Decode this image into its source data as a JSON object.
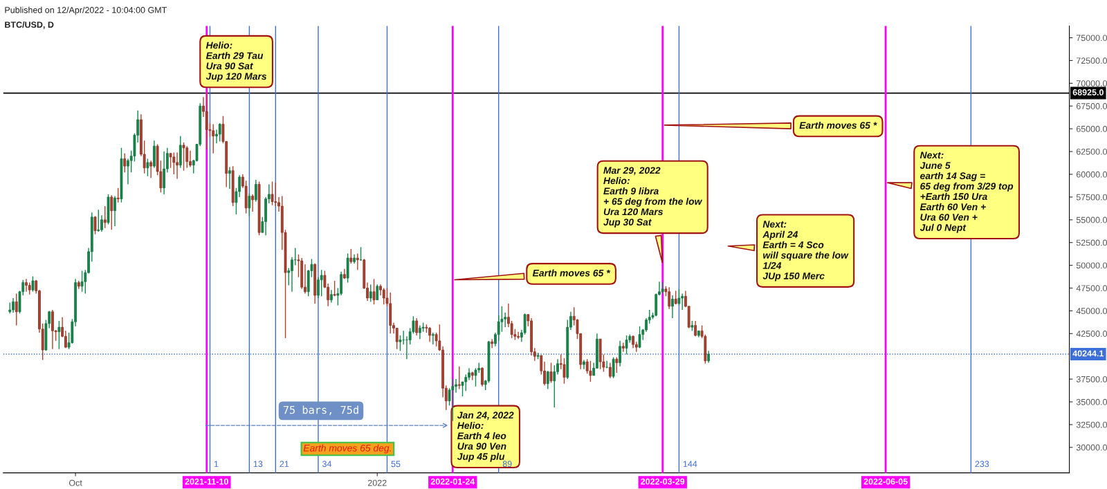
{
  "chart_data": {
    "type": "candlestick",
    "title": "BTC/USD, D",
    "subtitle": "Published on 12/Apr/2022 - 10:04:00 GMT",
    "x": [
      "2021-09-11",
      "2021-09-12",
      "2021-09-13",
      "2021-09-14",
      "2021-09-15",
      "2021-09-16",
      "2021-09-17",
      "2021-09-18",
      "2021-09-19",
      "2021-09-20",
      "2021-09-21",
      "2021-09-22",
      "2021-09-23",
      "2021-09-24",
      "2021-09-25",
      "2021-09-26",
      "2021-09-27",
      "2021-09-28",
      "2021-09-29",
      "2021-09-30",
      "2021-10-01",
      "2021-10-02",
      "2021-10-03",
      "2021-10-04",
      "2021-10-05",
      "2021-10-06",
      "2021-10-07",
      "2021-10-08",
      "2021-10-09",
      "2021-10-10",
      "2021-10-11",
      "2021-10-12",
      "2021-10-13",
      "2021-10-14",
      "2021-10-15",
      "2021-10-16",
      "2021-10-17",
      "2021-10-18",
      "2021-10-19",
      "2021-10-20",
      "2021-10-21",
      "2021-10-22",
      "2021-10-23",
      "2021-10-24",
      "2021-10-25",
      "2021-10-26",
      "2021-10-27",
      "2021-10-28",
      "2021-10-29",
      "2021-10-30",
      "2021-10-31",
      "2021-11-01",
      "2021-11-02",
      "2021-11-03",
      "2021-11-04",
      "2021-11-05",
      "2021-11-06",
      "2021-11-07",
      "2021-11-08",
      "2021-11-09",
      "2021-11-10",
      "2021-11-11",
      "2021-11-12",
      "2021-11-13",
      "2021-11-14",
      "2021-11-15",
      "2021-11-16",
      "2021-11-17",
      "2021-11-18",
      "2021-11-19",
      "2021-11-20",
      "2021-11-21",
      "2021-11-22",
      "2021-11-23",
      "2021-11-24",
      "2021-11-25",
      "2021-11-26",
      "2021-11-27",
      "2021-11-28",
      "2021-11-29",
      "2021-11-30",
      "2021-12-01",
      "2021-12-02",
      "2021-12-03",
      "2021-12-04",
      "2021-12-05",
      "2021-12-06",
      "2021-12-07",
      "2021-12-08",
      "2021-12-09",
      "2021-12-10",
      "2021-12-11",
      "2021-12-12",
      "2021-12-13",
      "2021-12-14",
      "2021-12-15",
      "2021-12-16",
      "2021-12-17",
      "2021-12-18",
      "2021-12-19",
      "2021-12-20",
      "2021-12-21",
      "2021-12-22",
      "2021-12-23",
      "2021-12-24",
      "2021-12-25",
      "2021-12-26",
      "2021-12-27",
      "2021-12-28",
      "2021-12-29",
      "2021-12-30",
      "2021-12-31",
      "2022-01-01",
      "2022-01-02",
      "2022-01-03",
      "2022-01-04",
      "2022-01-05",
      "2022-01-06",
      "2022-01-07",
      "2022-01-08",
      "2022-01-09",
      "2022-01-10",
      "2022-01-11",
      "2022-01-12",
      "2022-01-13",
      "2022-01-14",
      "2022-01-15",
      "2022-01-16",
      "2022-01-17",
      "2022-01-18",
      "2022-01-19",
      "2022-01-20",
      "2022-01-21",
      "2022-01-22",
      "2022-01-23",
      "2022-01-24",
      "2022-01-25",
      "2022-01-26",
      "2022-01-27",
      "2022-01-28",
      "2022-01-29",
      "2022-01-30",
      "2022-01-31",
      "2022-02-01",
      "2022-02-02",
      "2022-02-03",
      "2022-02-04",
      "2022-02-05",
      "2022-02-06",
      "2022-02-07",
      "2022-02-08",
      "2022-02-09",
      "2022-02-10",
      "2022-02-11",
      "2022-02-12",
      "2022-02-13",
      "2022-02-14",
      "2022-02-15",
      "2022-02-16",
      "2022-02-17",
      "2022-02-18",
      "2022-02-19",
      "2022-02-20",
      "2022-02-21",
      "2022-02-22",
      "2022-02-23",
      "2022-02-24",
      "2022-02-25",
      "2022-02-26",
      "2022-02-27",
      "2022-02-28",
      "2022-03-01",
      "2022-03-02",
      "2022-03-03",
      "2022-03-04",
      "2022-03-05",
      "2022-03-06",
      "2022-03-07",
      "2022-03-08",
      "2022-03-09",
      "2022-03-10",
      "2022-03-11",
      "2022-03-12",
      "2022-03-13",
      "2022-03-14",
      "2022-03-15",
      "2022-03-16",
      "2022-03-17",
      "2022-03-18",
      "2022-03-19",
      "2022-03-20",
      "2022-03-21",
      "2022-03-22",
      "2022-03-23",
      "2022-03-24",
      "2022-03-25",
      "2022-03-26",
      "2022-03-27",
      "2022-03-28",
      "2022-03-29",
      "2022-03-30",
      "2022-03-31",
      "2022-04-01",
      "2022-04-02",
      "2022-04-03",
      "2022-04-04",
      "2022-04-05",
      "2022-04-06",
      "2022-04-07",
      "2022-04-08",
      "2022-04-09",
      "2022-04-10",
      "2022-04-11",
      "2022-04-12"
    ],
    "ohlc": [
      [
        44900,
        45900,
        44700,
        45100
      ],
      [
        45100,
        46400,
        44800,
        46000
      ],
      [
        46000,
        46900,
        43400,
        44900
      ],
      [
        44900,
        47200,
        44700,
        47100
      ],
      [
        47100,
        48400,
        46700,
        48100
      ],
      [
        48100,
        48500,
        47100,
        47800
      ],
      [
        47800,
        48100,
        46800,
        47300
      ],
      [
        47300,
        48800,
        47100,
        48300
      ],
      [
        48300,
        48400,
        46900,
        47200
      ],
      [
        47200,
        47300,
        42600,
        43000
      ],
      [
        43000,
        43600,
        39600,
        40700
      ],
      [
        40700,
        44000,
        40600,
        43600
      ],
      [
        43600,
        45000,
        43100,
        44900
      ],
      [
        44900,
        45100,
        40800,
        42800
      ],
      [
        42800,
        42900,
        41700,
        42700
      ],
      [
        42700,
        43900,
        40800,
        43200
      ],
      [
        43200,
        44300,
        42100,
        42200
      ],
      [
        42200,
        42800,
        40900,
        41000
      ],
      [
        41000,
        42600,
        40800,
        41500
      ],
      [
        41500,
        44100,
        41400,
        43800
      ],
      [
        43800,
        48500,
        43300,
        48100
      ],
      [
        48100,
        48300,
        47400,
        47700
      ],
      [
        47700,
        49400,
        47100,
        48200
      ],
      [
        48200,
        49500,
        46900,
        49200
      ],
      [
        49200,
        51900,
        49100,
        51500
      ],
      [
        51500,
        55800,
        50400,
        55300
      ],
      [
        55300,
        55400,
        53400,
        53800
      ],
      [
        53800,
        56100,
        53700,
        53900
      ],
      [
        53900,
        55500,
        53700,
        55000
      ],
      [
        55000,
        56500,
        54100,
        54700
      ],
      [
        54700,
        57800,
        54500,
        57500
      ],
      [
        57500,
        57700,
        53900,
        56000
      ],
      [
        56000,
        57600,
        54300,
        57400
      ],
      [
        57400,
        58500,
        56900,
        57300
      ],
      [
        57300,
        62900,
        56900,
        61700
      ],
      [
        61700,
        62300,
        60200,
        60900
      ],
      [
        60900,
        61700,
        58900,
        61500
      ],
      [
        61500,
        62600,
        60200,
        62000
      ],
      [
        62000,
        64500,
        61400,
        64300
      ],
      [
        64300,
        67000,
        63500,
        66000
      ],
      [
        66000,
        66600,
        62000,
        62200
      ],
      [
        62200,
        63700,
        60100,
        60700
      ],
      [
        60700,
        61700,
        59800,
        61300
      ],
      [
        61300,
        61500,
        59600,
        60900
      ],
      [
        60900,
        63700,
        60700,
        63100
      ],
      [
        63100,
        63300,
        59900,
        60300
      ],
      [
        60300,
        61500,
        58000,
        58500
      ],
      [
        58500,
        62500,
        57800,
        60600
      ],
      [
        60600,
        62900,
        60200,
        62300
      ],
      [
        62300,
        62300,
        60700,
        61900
      ],
      [
        61900,
        62400,
        60000,
        61300
      ],
      [
        61300,
        62400,
        59500,
        61000
      ],
      [
        61000,
        64200,
        60700,
        63200
      ],
      [
        63200,
        63500,
        60400,
        62900
      ],
      [
        62900,
        63100,
        60700,
        61400
      ],
      [
        61400,
        62600,
        60800,
        61000
      ],
      [
        61000,
        61600,
        60100,
        61500
      ],
      [
        61500,
        63300,
        61400,
        63300
      ],
      [
        63300,
        67800,
        63100,
        67500
      ],
      [
        67500,
        68500,
        66300,
        66900
      ],
      [
        66900,
        68925,
        62800,
        64900
      ],
      [
        64900,
        65600,
        64100,
        64800
      ],
      [
        64800,
        65500,
        62300,
        64200
      ],
      [
        64200,
        64900,
        63400,
        64400
      ],
      [
        64400,
        65600,
        63600,
        65500
      ],
      [
        65500,
        66400,
        63400,
        63600
      ],
      [
        63600,
        63600,
        58600,
        60100
      ],
      [
        60100,
        60800,
        58400,
        60400
      ],
      [
        60400,
        60900,
        56500,
        56900
      ],
      [
        56900,
        58500,
        55600,
        58100
      ],
      [
        58100,
        59900,
        57500,
        59700
      ],
      [
        59700,
        60000,
        58500,
        58700
      ],
      [
        58700,
        59300,
        55700,
        56300
      ],
      [
        56300,
        57900,
        55400,
        57600
      ],
      [
        57600,
        57800,
        55900,
        57200
      ],
      [
        57200,
        59400,
        57000,
        58900
      ],
      [
        58900,
        59200,
        53300,
        53600
      ],
      [
        53600,
        55300,
        53600,
        54800
      ],
      [
        54800,
        57500,
        53300,
        57300
      ],
      [
        57300,
        58900,
        56800,
        57800
      ],
      [
        57800,
        59200,
        56600,
        57000
      ],
      [
        57000,
        59100,
        56500,
        56900
      ],
      [
        56900,
        57500,
        55900,
        56500
      ],
      [
        56500,
        57600,
        51700,
        53600
      ],
      [
        53600,
        53900,
        42000,
        49200
      ],
      [
        49200,
        49700,
        47800,
        49400
      ],
      [
        49400,
        50900,
        47100,
        50600
      ],
      [
        50600,
        51900,
        50000,
        50600
      ],
      [
        50600,
        51200,
        48700,
        50500
      ],
      [
        50500,
        50800,
        47400,
        47600
      ],
      [
        47600,
        50100,
        46900,
        47100
      ],
      [
        47100,
        49500,
        46600,
        49400
      ],
      [
        49400,
        50700,
        48700,
        50100
      ],
      [
        50100,
        50200,
        45800,
        46700
      ],
      [
        46700,
        48700,
        46400,
        48400
      ],
      [
        48400,
        49500,
        46600,
        48900
      ],
      [
        48900,
        49400,
        47500,
        47600
      ],
      [
        47600,
        48000,
        45500,
        46200
      ],
      [
        46200,
        47300,
        45900,
        46800
      ],
      [
        46800,
        48300,
        46600,
        46700
      ],
      [
        46700,
        47500,
        45600,
        46900
      ],
      [
        46900,
        49300,
        46700,
        49000
      ],
      [
        49000,
        49600,
        48500,
        48600
      ],
      [
        48600,
        51300,
        48100,
        50800
      ],
      [
        50800,
        51800,
        50200,
        50400
      ],
      [
        50400,
        51200,
        50200,
        50800
      ],
      [
        50800,
        51300,
        49500,
        50600
      ],
      [
        50600,
        52000,
        50500,
        50600
      ],
      [
        50600,
        50700,
        47400,
        47500
      ],
      [
        47500,
        48100,
        46100,
        46400
      ],
      [
        46400,
        47900,
        46000,
        47100
      ],
      [
        47100,
        48500,
        45700,
        46200
      ],
      [
        46200,
        47900,
        46200,
        47700
      ],
      [
        47700,
        47900,
        46700,
        47300
      ],
      [
        47300,
        47500,
        45700,
        46400
      ],
      [
        46400,
        47500,
        45500,
        45800
      ],
      [
        45800,
        47000,
        42500,
        43400
      ],
      [
        43400,
        43700,
        42500,
        43100
      ],
      [
        43100,
        43100,
        40800,
        41600
      ],
      [
        41600,
        42300,
        40600,
        41800
      ],
      [
        41800,
        42800,
        41300,
        41800
      ],
      [
        41800,
        42200,
        39700,
        41800
      ],
      [
        41800,
        43100,
        41300,
        42700
      ],
      [
        42700,
        44400,
        42500,
        43900
      ],
      [
        43900,
        44200,
        42300,
        42600
      ],
      [
        42600,
        43400,
        41900,
        43100
      ],
      [
        43100,
        43700,
        42700,
        43200
      ],
      [
        43200,
        43500,
        42600,
        43100
      ],
      [
        43100,
        43200,
        41600,
        42300
      ],
      [
        42300,
        42600,
        41300,
        42400
      ],
      [
        42400,
        42600,
        41100,
        41700
      ],
      [
        41700,
        43500,
        40600,
        40700
      ],
      [
        40700,
        41100,
        35500,
        36500
      ],
      [
        36500,
        36800,
        34100,
        35100
      ],
      [
        35100,
        36500,
        34600,
        36300
      ],
      [
        36300,
        37500,
        32900,
        36700
      ],
      [
        36700,
        37500,
        36000,
        36900
      ],
      [
        36900,
        38900,
        36400,
        36800
      ],
      [
        36800,
        37200,
        35600,
        37200
      ],
      [
        37200,
        38000,
        36200,
        37700
      ],
      [
        37700,
        38700,
        37400,
        38200
      ],
      [
        38200,
        38300,
        37400,
        37900
      ],
      [
        37900,
        38700,
        36700,
        38500
      ],
      [
        38500,
        39300,
        38200,
        38700
      ],
      [
        38700,
        38800,
        36700,
        36900
      ],
      [
        36900,
        37400,
        36300,
        37300
      ],
      [
        37300,
        41700,
        37100,
        41600
      ],
      [
        41600,
        41900,
        40900,
        41400
      ],
      [
        41400,
        42600,
        41100,
        42400
      ],
      [
        42400,
        44500,
        41700,
        43800
      ],
      [
        43800,
        45500,
        42700,
        44100
      ],
      [
        44100,
        44800,
        43200,
        44300
      ],
      [
        44300,
        45800,
        43200,
        43600
      ],
      [
        43600,
        43900,
        42000,
        42400
      ],
      [
        42400,
        43000,
        41800,
        42200
      ],
      [
        42200,
        42700,
        41900,
        42100
      ],
      [
        42100,
        42900,
        41600,
        42600
      ],
      [
        42600,
        44700,
        42400,
        44600
      ],
      [
        44600,
        44600,
        43300,
        43900
      ],
      [
        43900,
        44200,
        40100,
        40500
      ],
      [
        40500,
        40900,
        39500,
        40000
      ],
      [
        40000,
        40400,
        39700,
        40100
      ],
      [
        40100,
        40100,
        38000,
        38400
      ],
      [
        38400,
        39400,
        36800,
        37000
      ],
      [
        37000,
        38400,
        36400,
        38300
      ],
      [
        38300,
        39300,
        37100,
        37300
      ],
      [
        37300,
        39000,
        34400,
        38300
      ],
      [
        38300,
        39700,
        38000,
        39200
      ],
      [
        39200,
        40200,
        38600,
        39100
      ],
      [
        39100,
        39800,
        37000,
        37700
      ],
      [
        37700,
        44000,
        37500,
        43200
      ],
      [
        43200,
        44900,
        42900,
        44400
      ],
      [
        44400,
        45400,
        43400,
        44000
      ],
      [
        44000,
        44100,
        41900,
        42500
      ],
      [
        42500,
        42500,
        38600,
        39100
      ],
      [
        39100,
        39600,
        38600,
        39400
      ],
      [
        39400,
        39700,
        38100,
        38400
      ],
      [
        38400,
        39500,
        37200,
        37900
      ],
      [
        37900,
        39300,
        37900,
        38700
      ],
      [
        38700,
        42500,
        38700,
        41900
      ],
      [
        41900,
        41900,
        38600,
        39400
      ],
      [
        39400,
        40200,
        38300,
        38800
      ],
      [
        38800,
        39500,
        38700,
        38800
      ],
      [
        38800,
        39300,
        37600,
        37800
      ],
      [
        37800,
        39900,
        37600,
        39700
      ],
      [
        39700,
        39900,
        38200,
        39300
      ],
      [
        39300,
        41700,
        38900,
        41100
      ],
      [
        41100,
        41500,
        40500,
        40900
      ],
      [
        40900,
        42300,
        40200,
        41800
      ],
      [
        41800,
        42400,
        41500,
        42200
      ],
      [
        42200,
        42300,
        40900,
        41300
      ],
      [
        41300,
        41600,
        40500,
        41000
      ],
      [
        41000,
        43300,
        40900,
        42400
      ],
      [
        42400,
        43000,
        41800,
        42900
      ],
      [
        42900,
        44200,
        42700,
        44000
      ],
      [
        44000,
        45100,
        43600,
        44300
      ],
      [
        44300,
        44800,
        44100,
        44500
      ],
      [
        44500,
        46900,
        44400,
        46800
      ],
      [
        46800,
        48200,
        46700,
        47100
      ],
      [
        47100,
        48100,
        46900,
        47400
      ],
      [
        47400,
        47700,
        46600,
        47100
      ],
      [
        47100,
        47600,
        45200,
        45500
      ],
      [
        45500,
        46700,
        44200,
        46300
      ],
      [
        46300,
        47200,
        45700,
        45800
      ],
      [
        45800,
        47400,
        45600,
        46400
      ],
      [
        46400,
        46900,
        45100,
        46600
      ],
      [
        46600,
        47200,
        45400,
        45500
      ],
      [
        45500,
        45500,
        43100,
        43200
      ],
      [
        43200,
        43900,
        42800,
        43400
      ],
      [
        43400,
        43900,
        42200,
        42300
      ],
      [
        42300,
        42800,
        42100,
        42800
      ],
      [
        42800,
        43400,
        42000,
        42200
      ],
      [
        42200,
        42400,
        39200,
        39500
      ],
      [
        39500,
        40600,
        39300,
        40244.1
      ]
    ],
    "xlim": [
      "2021-09-09",
      "2022-07-31"
    ],
    "xticks": [
      {
        "value": "2021-10-01",
        "label": "Oct"
      },
      {
        "value": "2022-01-01",
        "label": "2022"
      }
    ],
    "ylim": [
      27200,
      76300
    ],
    "yticks": [
      {
        "value": 30000,
        "label": "30000.0"
      },
      {
        "value": 32500,
        "label": "32500.0"
      },
      {
        "value": 35000,
        "label": "35000.0"
      },
      {
        "value": 37500,
        "label": "37500.0"
      },
      {
        "value": 42500,
        "label": "42500.0"
      },
      {
        "value": 45000,
        "label": "45000.0"
      },
      {
        "value": 47500,
        "label": "47500.0"
      },
      {
        "value": 50000,
        "label": "50000.0"
      },
      {
        "value": 52500,
        "label": "52500.0"
      },
      {
        "value": 55000,
        "label": "55000.0"
      },
      {
        "value": 57500,
        "label": "57500.0"
      },
      {
        "value": 60000,
        "label": "60000.0"
      },
      {
        "value": 62500,
        "label": "62500.0"
      },
      {
        "value": 65000,
        "label": "65000.0"
      },
      {
        "value": 67500,
        "label": "67500.0"
      },
      {
        "value": 70000,
        "label": "70000.0"
      },
      {
        "value": 72500,
        "label": "72500.0"
      },
      {
        "value": 75000,
        "label": "75000.0"
      }
    ],
    "grid": false,
    "ref_lines": [
      {
        "axis": "y",
        "value": 68925,
        "label": "68925.0",
        "color": "#000000",
        "line_style": "solid"
      },
      {
        "axis": "y",
        "value": 40244.1,
        "label": "40244.1",
        "color": "#3d6fd8",
        "line_style": "dotted"
      },
      {
        "axis": "x",
        "value": "2021-11-10",
        "label": "2021-11-10",
        "color": "#ff00ff",
        "line_style": "solid"
      },
      {
        "axis": "x",
        "value": "2022-01-24",
        "label": "2022-01-24",
        "color": "#ff00ff",
        "line_style": "solid"
      },
      {
        "axis": "x",
        "value": "2022-03-29",
        "label": "2022-03-29",
        "color": "#ff00ff",
        "line_style": "solid"
      },
      {
        "axis": "x",
        "value": "2022-06-05",
        "label": "2022-06-05",
        "color": "#ff00ff",
        "line_style": "solid"
      },
      {
        "axis": "x",
        "value": "2021-11-11",
        "label": "1",
        "color": "#3d6fd8",
        "line_style": "solid"
      },
      {
        "axis": "x",
        "value": "2021-11-23",
        "label": "13",
        "color": "#3d6fd8",
        "line_style": "solid"
      },
      {
        "axis": "x",
        "value": "2021-12-01",
        "label": "21",
        "color": "#3d6fd8",
        "line_style": "solid"
      },
      {
        "axis": "x",
        "value": "2021-12-14",
        "label": "34",
        "color": "#3d6fd8",
        "line_style": "solid"
      },
      {
        "axis": "x",
        "value": "2022-01-04",
        "label": "55",
        "color": "#3d6fd8",
        "line_style": "solid"
      },
      {
        "axis": "x",
        "value": "2022-02-07",
        "label": "89",
        "color": "#3d6fd8",
        "line_style": "solid"
      },
      {
        "axis": "x",
        "value": "2022-04-03",
        "label": "144",
        "color": "#3d6fd8",
        "line_style": "solid"
      },
      {
        "axis": "x",
        "value": "2022-07-01",
        "label": "233",
        "color": "#3d6fd8",
        "line_style": "solid"
      }
    ],
    "annotations": [
      {
        "text": "Helio:\nEarth 29 Tau\nUra 90 Sat\nJup 120 Mars",
        "x": "2021-11-10",
        "y": 72000
      },
      {
        "text": "Earth moves 65 *",
        "x": "2022-03-29",
        "y": 65400
      },
      {
        "text": "Mar 29, 2022\nHelio:\nEarth 9 libra\n+ 65 deg from the low\nUra 120 Mars\nJup 30 Sat",
        "x": "2022-03-29",
        "y": 50100
      },
      {
        "text": "Earth moves 65 *",
        "x": "2022-01-24",
        "y": 48400
      },
      {
        "text": "Jan 24, 2022\nHelio:\nEarth 4 leo\nUra 90 Ven\nJup 45 plu",
        "x": "2022-01-24",
        "y": 30100
      },
      {
        "text": "Next:\nJune 5\nearth 14 Sag =\n65 deg from 3/29 top\n+Earth 150 Ura\nEarth 60 Ven +\nUra 60 Ven +\nJul 0 Nept",
        "x": "2022-06-05",
        "y": 59100
      },
      "Next:\nApril 24\nEarth = 4 Sco\nwill square the low\n1/24\nJUp 150 Merc",
      "Earth moves 65 deg.",
      "75 bars, 75d"
    ]
  }
}
